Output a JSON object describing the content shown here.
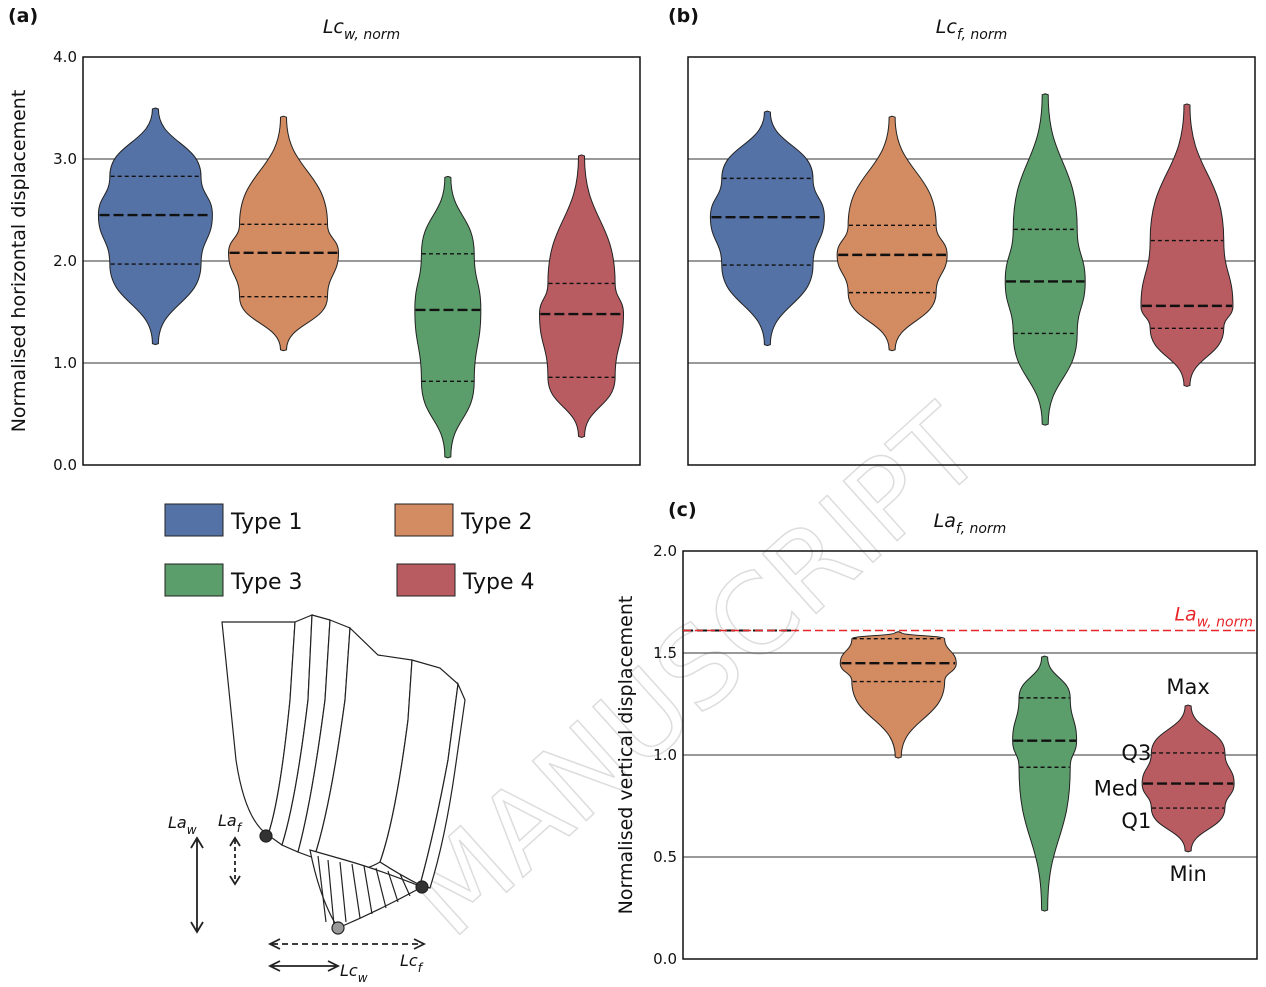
{
  "watermark": "MANUSCRIPT",
  "legend": [
    {
      "name": "Type 1",
      "color": "#5572a6"
    },
    {
      "name": "Type 2",
      "color": "#d38b62"
    },
    {
      "name": "Type 3",
      "color": "#5c9e6b"
    },
    {
      "name": "Type 4",
      "color": "#b85c62"
    }
  ],
  "chart_data": [
    {
      "type": "violin",
      "label": "(a)",
      "title": {
        "main": "Lc",
        "sub": "w, norm"
      },
      "ylabel": "Normalised horizontal displacement",
      "ylim": [
        0,
        4
      ],
      "yticks": [
        {
          "value": 0,
          "label": "0.0"
        },
        {
          "value": 1,
          "label": "1.0"
        },
        {
          "value": 2,
          "label": "2.0"
        },
        {
          "value": 3,
          "label": "3.0"
        },
        {
          "value": 4,
          "label": "4.0"
        }
      ],
      "show_tick_labels": true,
      "violins": [
        {
          "min": 1.19,
          "q1": 1.97,
          "median": 2.45,
          "q3": 2.83,
          "max": 3.49
        },
        {
          "min": 1.13,
          "q1": 1.65,
          "median": 2.08,
          "q3": 2.36,
          "max": 3.41
        },
        {
          "min": 0.08,
          "q1": 0.82,
          "median": 1.52,
          "q3": 2.07,
          "max": 2.82
        },
        {
          "min": 0.28,
          "q1": 0.86,
          "median": 1.48,
          "q3": 1.78,
          "max": 3.03
        }
      ]
    },
    {
      "type": "violin",
      "label": "(b)",
      "title": {
        "main": "Lc",
        "sub": "f, norm"
      },
      "ylim": [
        0,
        4
      ],
      "yticks": [
        1,
        2,
        3
      ],
      "show_tick_labels": false,
      "violins": [
        {
          "min": 1.18,
          "q1": 1.96,
          "median": 2.43,
          "q3": 2.81,
          "max": 3.46
        },
        {
          "min": 1.13,
          "q1": 1.69,
          "median": 2.06,
          "q3": 2.35,
          "max": 3.41
        },
        {
          "min": 0.4,
          "q1": 1.29,
          "median": 1.8,
          "q3": 2.31,
          "max": 3.63
        },
        {
          "min": 0.78,
          "q1": 1.34,
          "median": 1.56,
          "q3": 2.2,
          "max": 3.53
        }
      ]
    },
    {
      "type": "violin",
      "label": "(c)",
      "title": {
        "main": "La",
        "sub": "f, norm"
      },
      "ylabel": "Normalised vertical displacement",
      "ylim": [
        0,
        2
      ],
      "yticks": [
        {
          "value": 0,
          "label": "0.0"
        },
        {
          "value": 0.5,
          "label": "0.5"
        },
        {
          "value": 1,
          "label": "1.0"
        },
        {
          "value": 1.5,
          "label": "1.5"
        },
        {
          "value": 2,
          "label": "2.0"
        }
      ],
      "show_tick_labels": true,
      "reference_line": {
        "value": 1.61,
        "label": {
          "main": "La",
          "sub": "w, norm"
        },
        "color": "#e8262a"
      },
      "stat_labels": {
        "violin": 3,
        "max": "Max",
        "q3": "Q3",
        "median": "Med",
        "q1": "Q1",
        "min": "Min"
      },
      "violins": [
        {
          "min": 1.61,
          "q1": 1.61,
          "median": 1.61,
          "q3": 1.61,
          "max": 1.61
        },
        {
          "min": 0.99,
          "q1": 1.36,
          "median": 1.45,
          "q3": 1.57,
          "max": 1.6
        },
        {
          "min": 0.24,
          "q1": 0.94,
          "median": 1.07,
          "q3": 1.28,
          "max": 1.48
        },
        {
          "min": 0.53,
          "q1": 0.74,
          "median": 0.86,
          "q3": 1.01,
          "max": 1.24
        }
      ]
    }
  ],
  "diagram": {
    "La_w": {
      "main": "La",
      "sub": "w"
    },
    "La_f": {
      "main": "La",
      "sub": "f"
    },
    "Lc_w": {
      "main": "Lc",
      "sub": "w"
    },
    "Lc_f": {
      "main": "Lc",
      "sub": "f"
    }
  }
}
